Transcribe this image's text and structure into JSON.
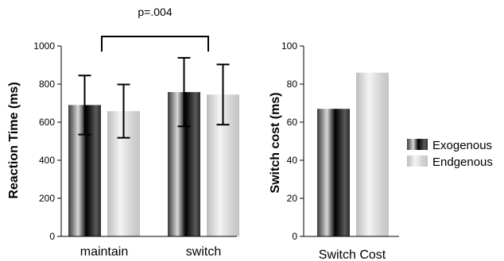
{
  "chart_data": [
    {
      "type": "bar",
      "ylabel": "Reaction Time (ms)",
      "xlabel": "",
      "ylim": [
        0,
        1000
      ],
      "yticks": [
        "0",
        "200",
        "400",
        "600",
        "800",
        "1000"
      ],
      "categories": [
        "maintain",
        "switch"
      ],
      "series": [
        {
          "name": "Exogenous",
          "values": [
            690,
            758
          ],
          "error": [
            155,
            180
          ]
        },
        {
          "name": "Endgenous",
          "values": [
            658,
            745
          ],
          "error": [
            140,
            158
          ]
        }
      ],
      "annotation": {
        "text": "p=.004",
        "between": [
          "maintain",
          "switch"
        ]
      },
      "grid": false
    },
    {
      "type": "bar",
      "ylabel": "Switch cost (ms)",
      "xlabel": "",
      "ylim": [
        0,
        100
      ],
      "yticks": [
        "0",
        "20",
        "40",
        "60",
        "80",
        "100"
      ],
      "categories": [
        "Switch Cost"
      ],
      "series": [
        {
          "name": "Exogenous",
          "values": [
            67
          ]
        },
        {
          "name": "Endgenous",
          "values": [
            86
          ]
        }
      ],
      "grid": false
    }
  ],
  "legend": {
    "placement": "right",
    "items": [
      {
        "label": "Exogenous",
        "style": "dark-gradient"
      },
      {
        "label": "Endgenous",
        "style": "light-gradient"
      }
    ]
  },
  "colors": {
    "exogenous_dark": "#000000",
    "exogenous_light": "#e6e6e6",
    "endgenous_dark": "#bcbcbc",
    "endgenous_light": "#f2f2f2",
    "axis": "#000000"
  }
}
